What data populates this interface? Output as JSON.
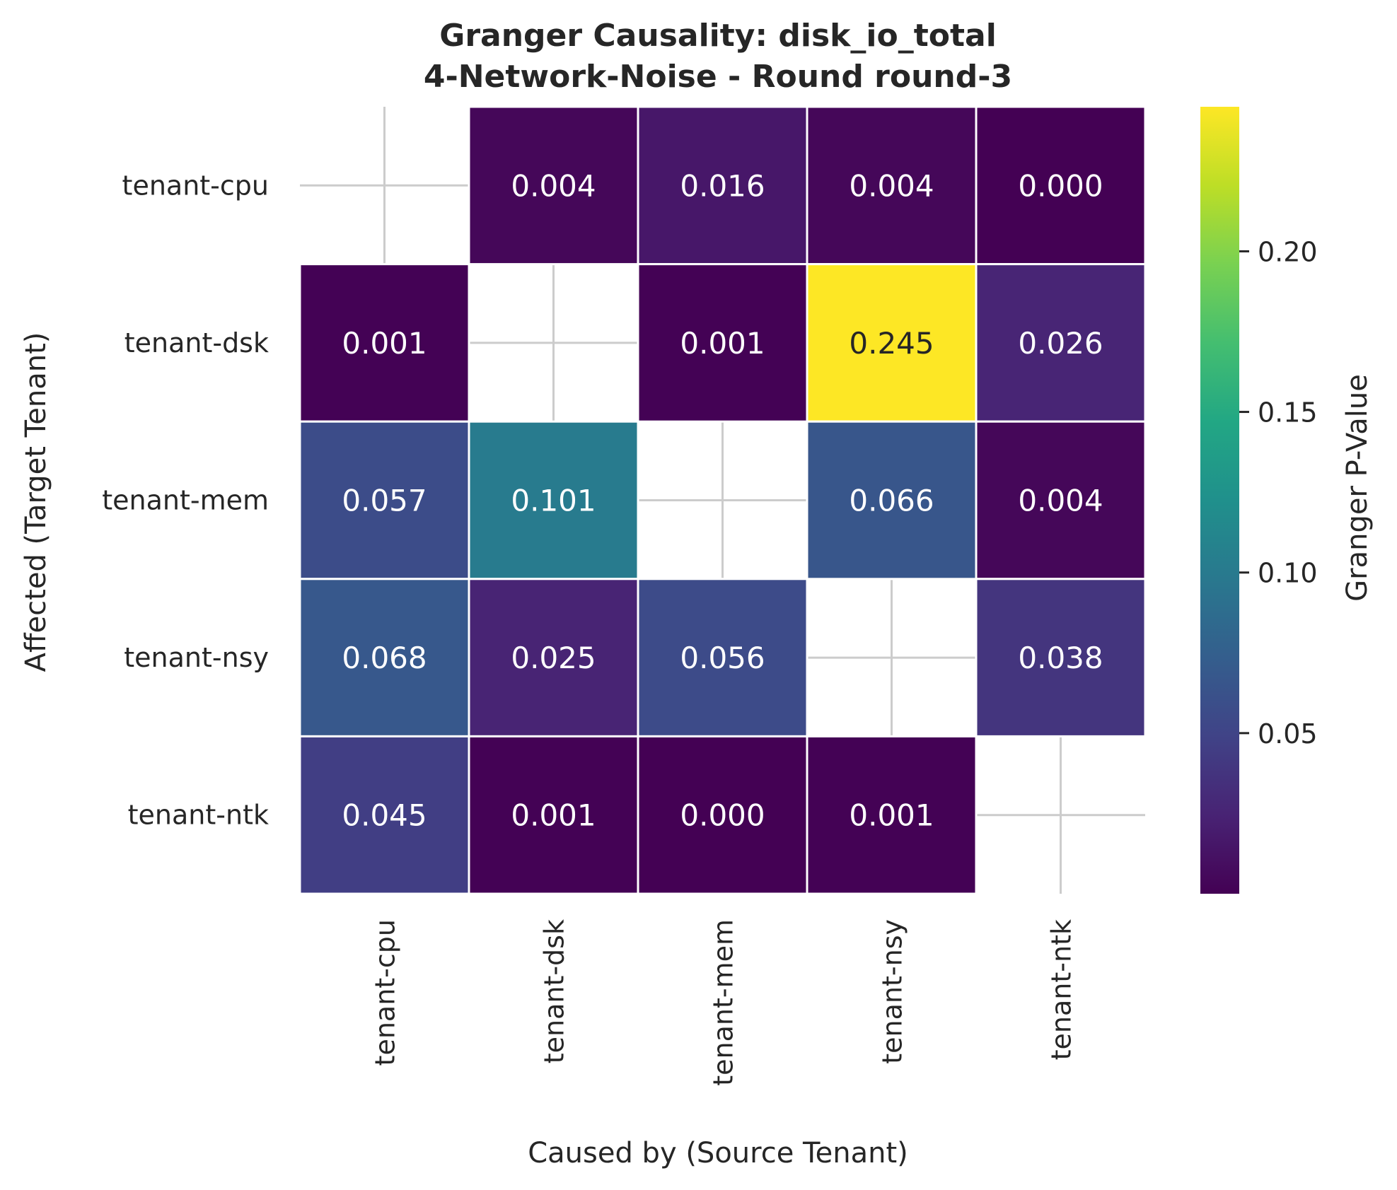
{
  "chart_data": {
    "type": "heatmap",
    "title": "Granger Causality: disk_io_total",
    "subtitle": "4-Network-Noise - Round round-3",
    "xlabel": "Caused by (Source Tenant)",
    "ylabel": "Affected (Target Tenant)",
    "x_categories": [
      "tenant-cpu",
      "tenant-dsk",
      "tenant-mem",
      "tenant-nsy",
      "tenant-ntk"
    ],
    "y_categories": [
      "tenant-cpu",
      "tenant-dsk",
      "tenant-mem",
      "tenant-nsy",
      "tenant-ntk"
    ],
    "values": [
      [
        null,
        0.004,
        0.016,
        0.004,
        0.0
      ],
      [
        0.001,
        null,
        0.001,
        0.245,
        0.026
      ],
      [
        0.057,
        0.101,
        null,
        0.066,
        0.004
      ],
      [
        0.068,
        0.025,
        0.056,
        null,
        0.038
      ],
      [
        0.045,
        0.001,
        0.0,
        0.001,
        null
      ]
    ],
    "value_format_decimals": 3,
    "colormap": "viridis",
    "colorbar": {
      "label": "Granger P-Value",
      "range": [
        0.0,
        0.245
      ],
      "ticks": [
        0.05,
        0.1,
        0.15,
        0.2
      ],
      "tick_labels": [
        "0.05",
        "0.10",
        "0.15",
        "0.20"
      ]
    },
    "grid": true,
    "cell_border_color": "#ffffff",
    "grid_color": "#cccccc"
  }
}
